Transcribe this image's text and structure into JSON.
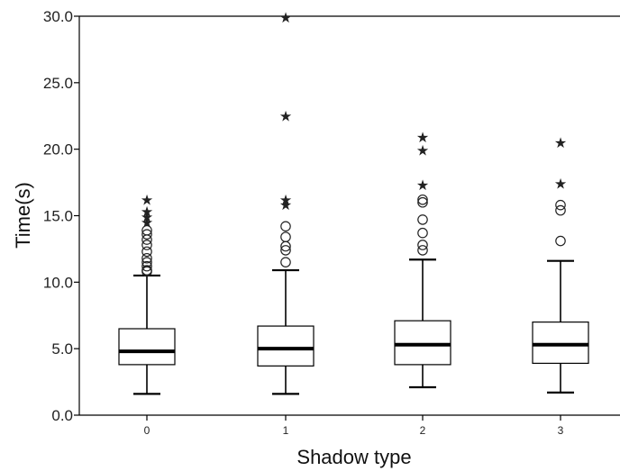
{
  "chart_data": {
    "type": "boxplot",
    "title": "",
    "xlabel": "Shadow type",
    "ylabel": "Time(s)",
    "ylim": [
      0,
      30
    ],
    "yticks": [
      "0.0",
      "5.0",
      "10.0",
      "15.0",
      "20.0",
      "25.0",
      "30.0"
    ],
    "categories": [
      "0",
      "1",
      "2",
      "3"
    ],
    "grid": false,
    "series": [
      {
        "category": "0",
        "whisker_low": 1.6,
        "q1": 3.8,
        "median": 4.8,
        "q3": 6.5,
        "whisker_high": 10.5,
        "outliers": [
          10.8,
          10.9,
          11.2,
          11.5,
          11.8,
          12.3,
          12.8,
          13.2,
          13.6,
          13.9
        ],
        "extremes": [
          14.5,
          14.9,
          15.3,
          16.2
        ]
      },
      {
        "category": "1",
        "whisker_low": 1.6,
        "q1": 3.7,
        "median": 5.0,
        "q3": 6.7,
        "whisker_high": 10.9,
        "outliers": [
          11.5,
          12.4,
          12.7,
          13.4,
          14.2
        ],
        "extremes": [
          15.8,
          16.2,
          22.5,
          29.9
        ]
      },
      {
        "category": "2",
        "whisker_low": 2.1,
        "q1": 3.8,
        "median": 5.3,
        "q3": 7.1,
        "whisker_high": 11.7,
        "outliers": [
          12.4,
          12.8,
          13.7,
          14.7,
          16.0,
          16.2
        ],
        "extremes": [
          17.3,
          19.9,
          20.9
        ]
      },
      {
        "category": "3",
        "whisker_low": 1.7,
        "q1": 3.9,
        "median": 5.3,
        "q3": 7.0,
        "whisker_high": 11.6,
        "outliers": [
          13.1,
          15.4,
          15.8
        ],
        "extremes": [
          17.4,
          20.5
        ]
      }
    ]
  }
}
